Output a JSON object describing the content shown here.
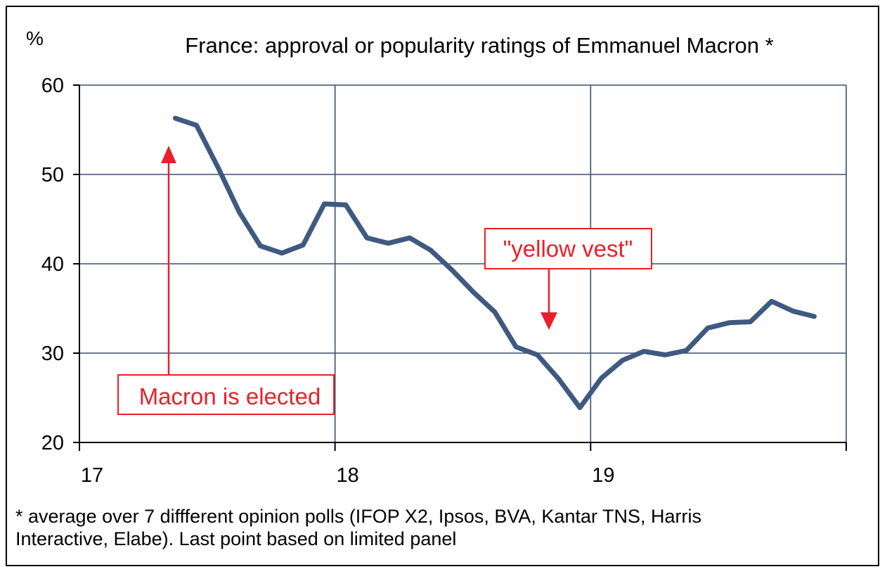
{
  "chart_data": {
    "type": "line",
    "title": "France: approval or popularity ratings of Emmanuel Macron *",
    "ylabel": "%",
    "xlabel": "",
    "ylim": [
      20,
      60
    ],
    "xlim": [
      17,
      20
    ],
    "yticks": [
      20,
      30,
      40,
      50,
      60
    ],
    "xticks": [
      {
        "value": 17,
        "label": "17"
      },
      {
        "value": 18,
        "label": "18"
      },
      {
        "value": 19,
        "label": "19"
      }
    ],
    "grid": true,
    "line_color": "#3f5a80",
    "series": [
      {
        "name": "",
        "x": [
          17.375,
          17.458,
          17.542,
          17.625,
          17.708,
          17.792,
          17.875,
          17.958,
          18.042,
          18.125,
          18.208,
          18.292,
          18.375,
          18.458,
          18.542,
          18.625,
          18.708,
          18.792,
          18.875,
          18.958,
          19.042,
          19.125,
          19.208,
          19.292,
          19.375,
          19.458,
          19.542,
          19.625,
          19.708,
          19.792,
          19.875
        ],
        "values": [
          56.3,
          55.5,
          50.8,
          45.8,
          42.0,
          41.2,
          42.1,
          46.7,
          46.6,
          42.9,
          42.3,
          42.9,
          41.5,
          39.3,
          36.8,
          34.6,
          30.7,
          29.8,
          27.1,
          23.9,
          27.2,
          29.2,
          30.2,
          29.8,
          30.3,
          32.8,
          33.4,
          33.5,
          35.8,
          34.7,
          34.1
        ]
      }
    ],
    "annotations": [
      {
        "text": "Macron is elected",
        "color": "#e8202a"
      },
      {
        "text": "\"yellow vest\"",
        "color": "#e8202a"
      }
    ]
  },
  "footnote": {
    "line1": "* average over 7 diffferent opinion polls (IFOP X2, Ipsos, BVA, Kantar TNS, Harris",
    "line2": "Interactive, Elabe). Last point based on limited panel"
  }
}
